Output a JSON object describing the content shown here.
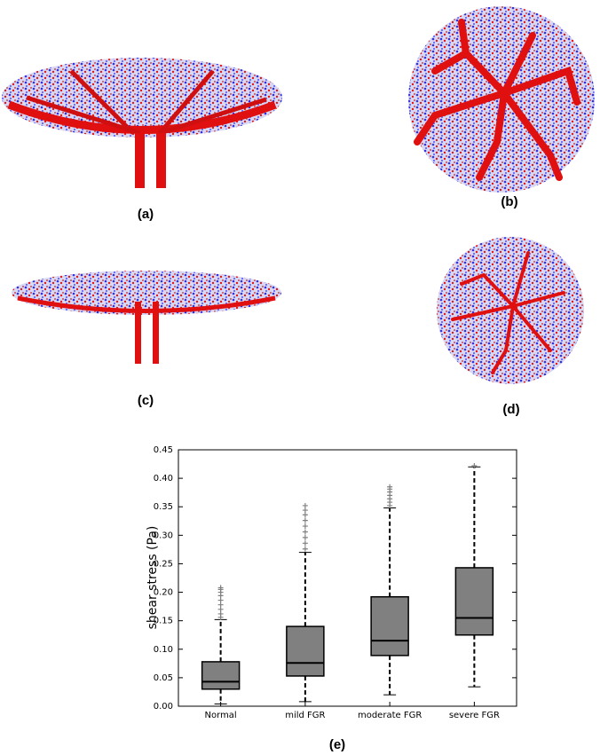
{
  "figure_labels": [
    "(a)",
    "(b)",
    "(c)",
    "(d)",
    "(e)"
  ],
  "chart_data": {
    "type": "box",
    "ylabel": "shear stress (Pa)",
    "categories": [
      "Normal",
      "mild FGR",
      "moderate FGR",
      "severe FGR"
    ],
    "color": "#808080",
    "boxes": [
      {
        "whisker_low": 0.004,
        "q1": 0.03,
        "median": 0.043,
        "q3": 0.078,
        "whisker_high": 0.152,
        "outliers": [
          0.156,
          0.162,
          0.17,
          0.178,
          0.186,
          0.194,
          0.2,
          0.205,
          0.208
        ]
      },
      {
        "whisker_low": 0.008,
        "q1": 0.053,
        "median": 0.076,
        "q3": 0.14,
        "whisker_high": 0.27,
        "outliers": [
          0.276,
          0.286,
          0.296,
          0.306,
          0.316,
          0.326,
          0.336,
          0.344,
          0.352
        ]
      },
      {
        "whisker_low": 0.02,
        "q1": 0.089,
        "median": 0.115,
        "q3": 0.192,
        "whisker_high": 0.348,
        "outliers": [
          0.352,
          0.358,
          0.364,
          0.37,
          0.376,
          0.381,
          0.385
        ]
      },
      {
        "whisker_low": 0.034,
        "q1": 0.125,
        "median": 0.155,
        "q3": 0.243,
        "whisker_high": 0.42,
        "outliers": [
          0.422
        ]
      }
    ],
    "ylim": [
      0,
      0.45
    ],
    "yticks": [
      {
        "value": 0,
        "label": "0.00"
      },
      {
        "value": 0.05,
        "label": "0.05"
      },
      {
        "value": 0.1,
        "label": "0.10"
      },
      {
        "value": 0.15,
        "label": "0.15"
      },
      {
        "value": 0.2,
        "label": "0.20"
      },
      {
        "value": 0.25,
        "label": "0.25"
      },
      {
        "value": 0.3,
        "label": "0.30"
      },
      {
        "value": 0.35,
        "label": "0.35"
      },
      {
        "value": 0.4,
        "label": "0.40"
      },
      {
        "value": 0.45,
        "label": "0.45"
      }
    ]
  }
}
